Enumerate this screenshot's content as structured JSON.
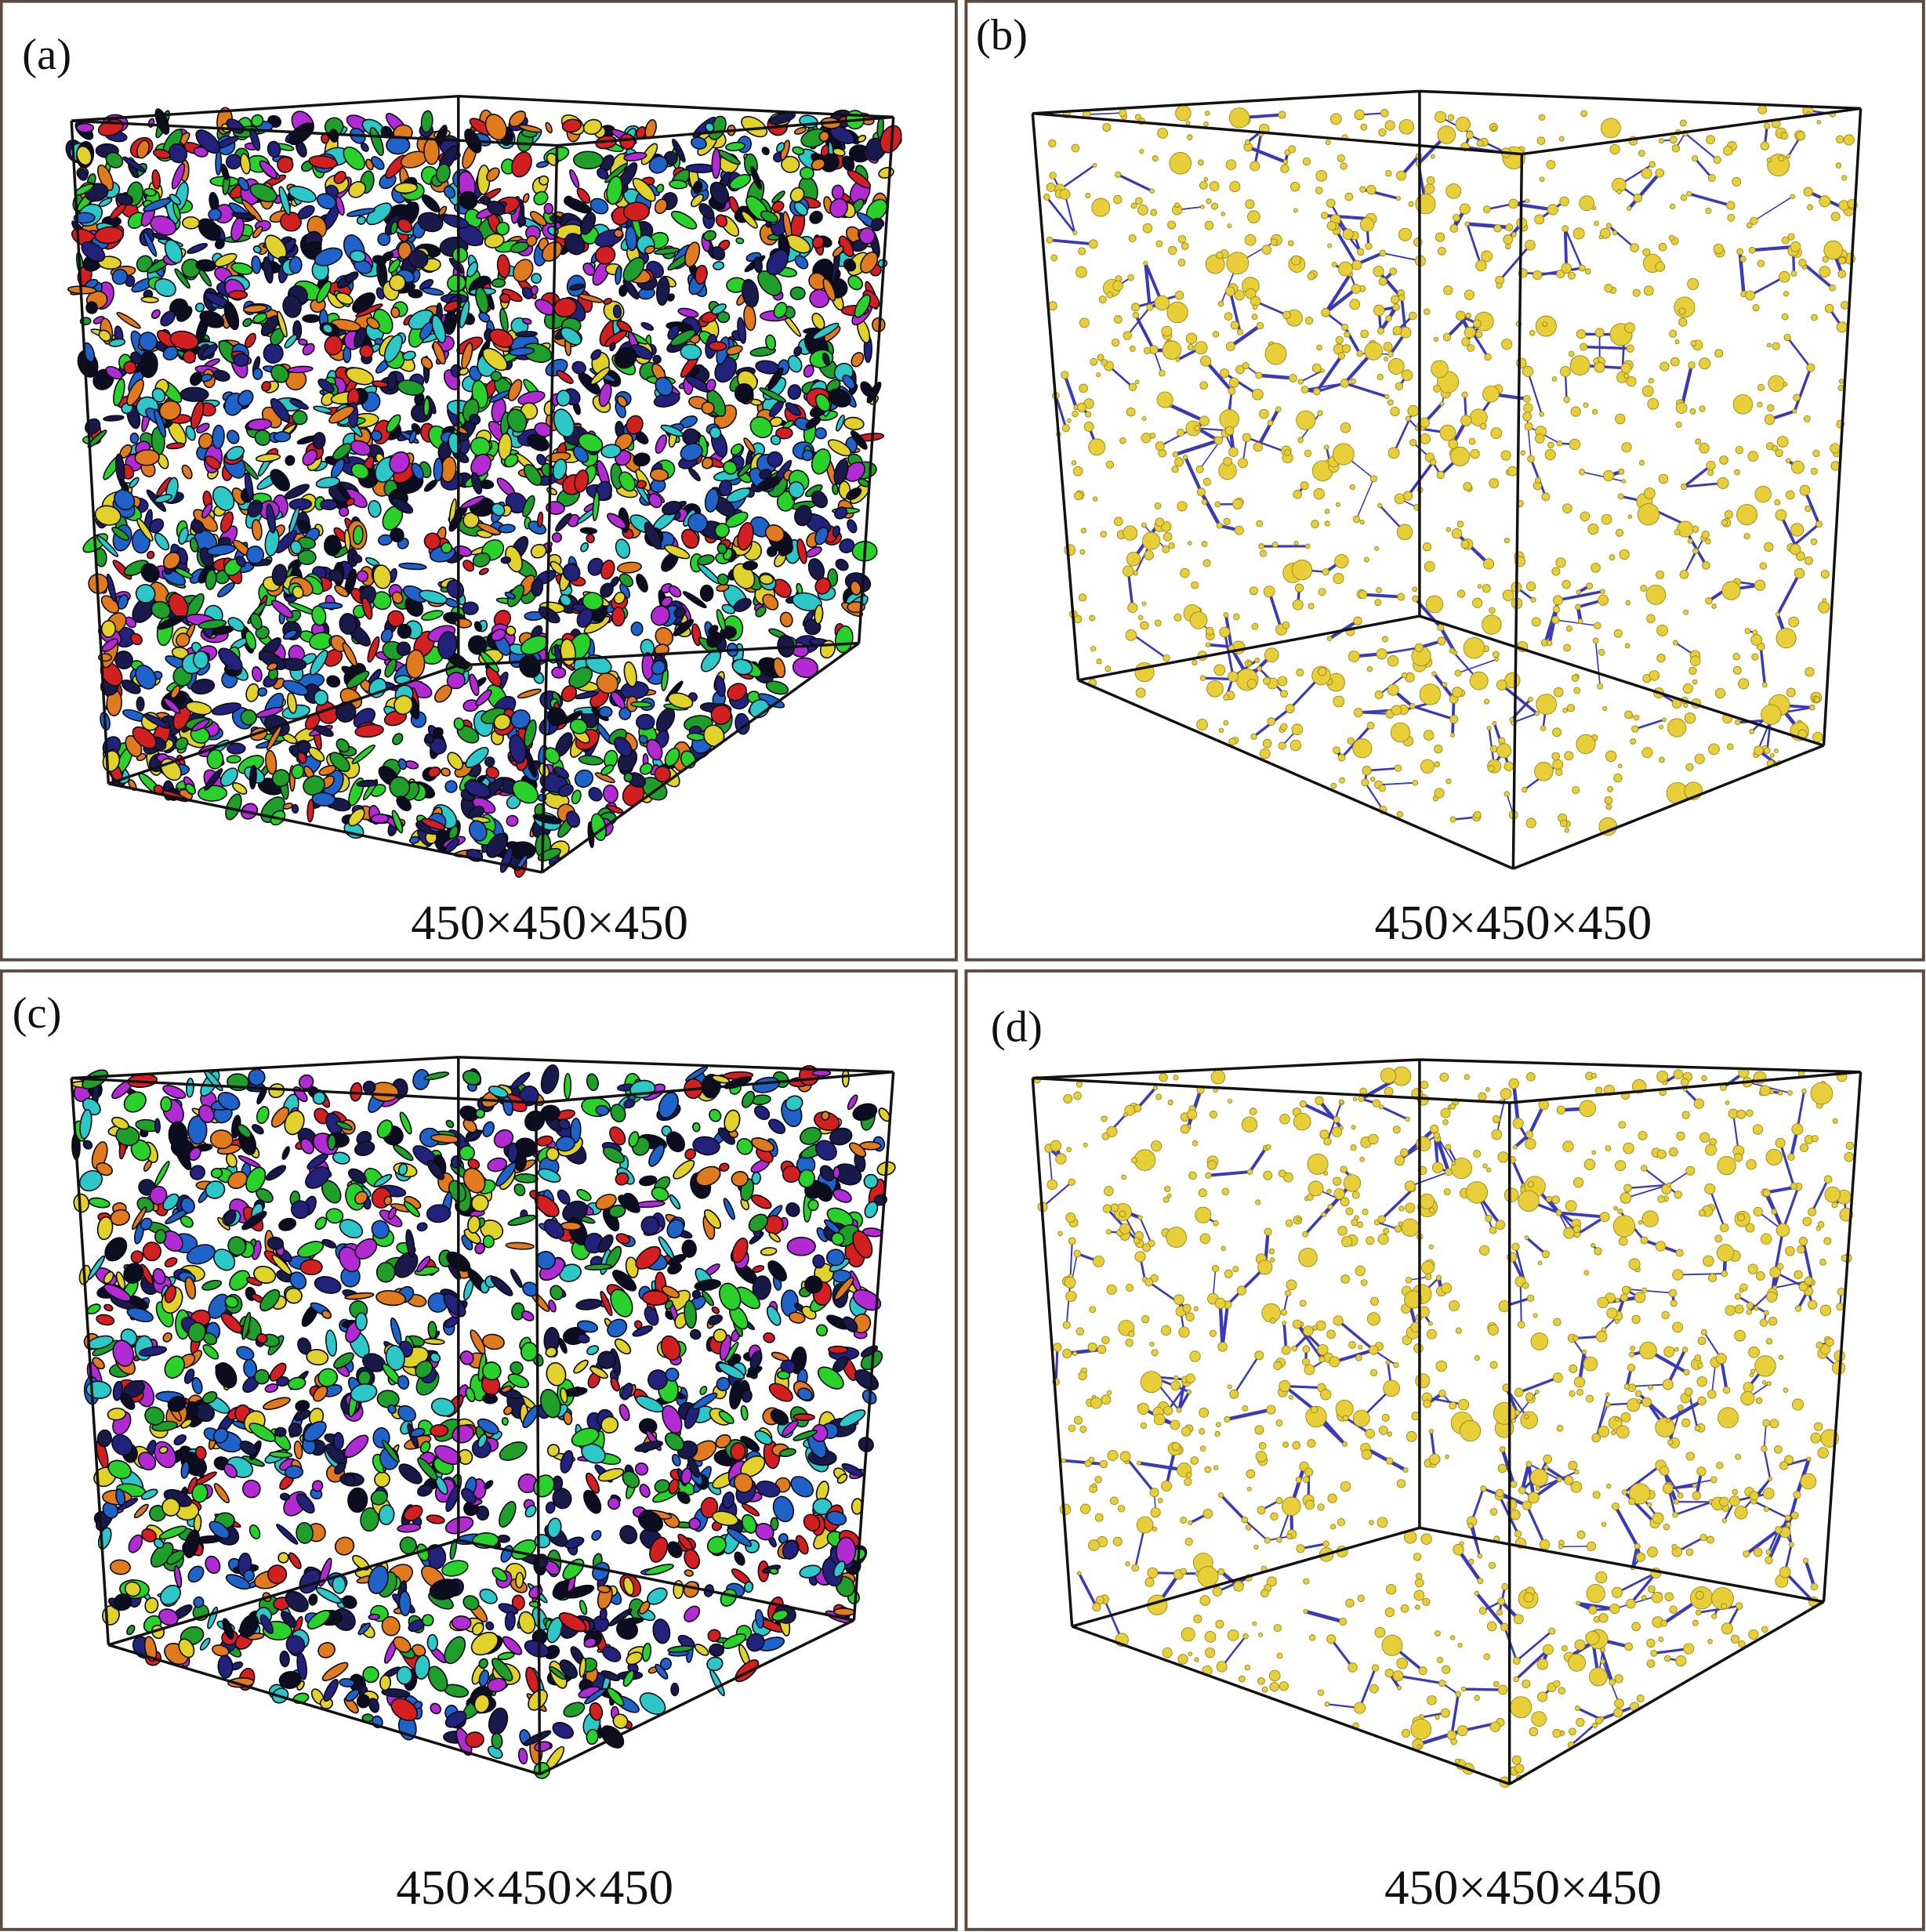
{
  "panels": [
    {
      "label": "(a)",
      "caption": "450×450×450"
    },
    {
      "label": "(b)",
      "caption": "450×450×450"
    },
    {
      "label": "(c)",
      "caption": "450×450×450"
    },
    {
      "label": "(d)",
      "caption": "450×450×450"
    }
  ]
}
